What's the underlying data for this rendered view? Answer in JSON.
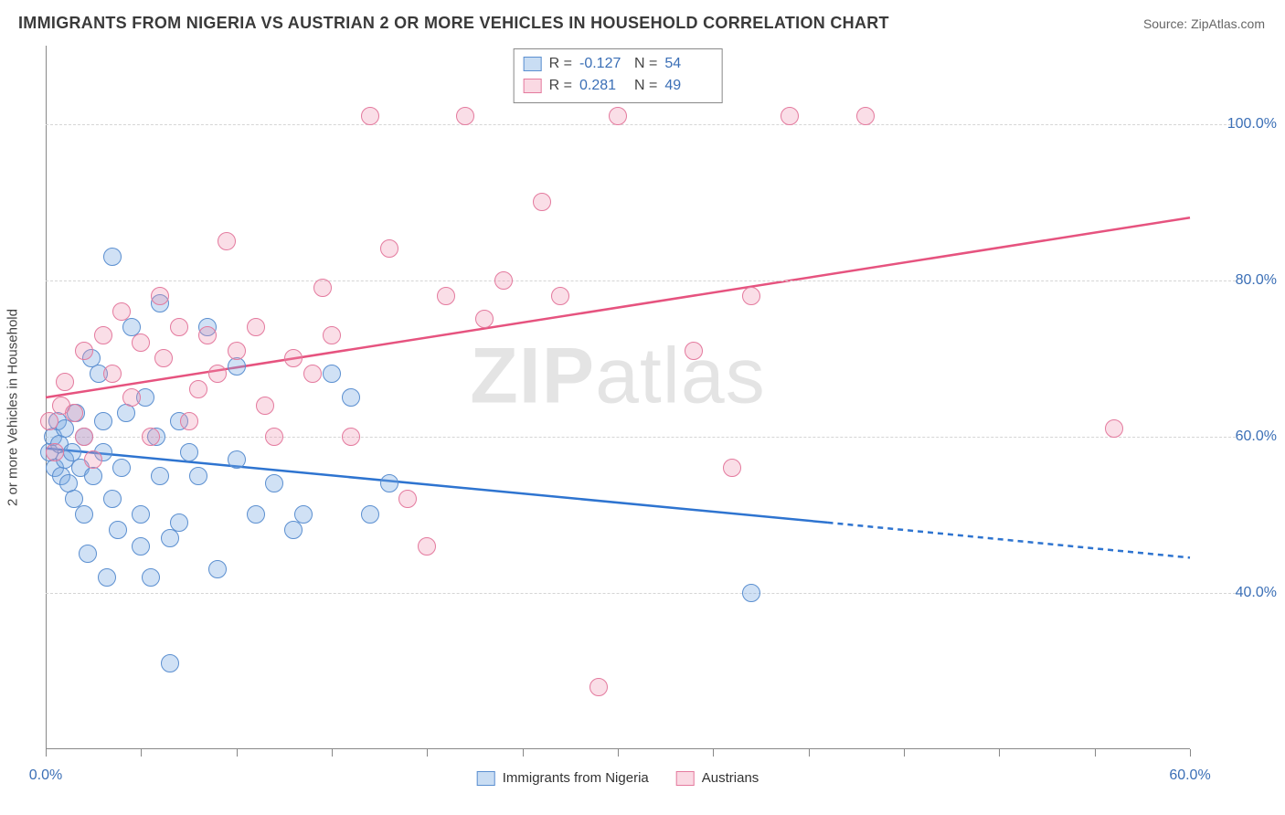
{
  "title": "IMMIGRANTS FROM NIGERIA VS AUSTRIAN 2 OR MORE VEHICLES IN HOUSEHOLD CORRELATION CHART",
  "source": "Source: ZipAtlas.com",
  "watermark_bold": "ZIP",
  "watermark_rest": "atlas",
  "chart": {
    "type": "scatter",
    "x_domain": [
      0,
      60
    ],
    "y_domain": [
      20,
      110
    ],
    "background_color": "#ffffff",
    "grid_color": "#d5d5d5",
    "axis_color": "#888888",
    "ylabel": "2 or more Vehicles in Household",
    "label_fontsize": 15,
    "tick_fontsize": 16,
    "tick_color": "#3b6fb6",
    "x_ticks": [
      0,
      5,
      10,
      15,
      20,
      25,
      30,
      35,
      40,
      45,
      50,
      55,
      60
    ],
    "x_tick_labels": {
      "0": "0.0%",
      "60": "60.0%"
    },
    "y_gridlines": [
      40,
      60,
      80,
      100
    ],
    "y_tick_labels": {
      "40": "40.0%",
      "60": "60.0%",
      "80": "80.0%",
      "100": "100.0%"
    },
    "marker_radius": 10,
    "marker_border_width": 1.5,
    "series": [
      {
        "id": "a",
        "name": "Immigrants from Nigeria",
        "fill": "rgba(120,170,225,0.35)",
        "border": "#5b8fd0",
        "trend": {
          "color": "#2e74d0",
          "width": 2.5,
          "x1": 0,
          "y1": 58.5,
          "x_solid_end": 41,
          "y_solid_end": 49,
          "x2": 60,
          "y2": 44.5,
          "dash": "6,5"
        },
        "points": [
          [
            0.2,
            58
          ],
          [
            0.4,
            60
          ],
          [
            0.5,
            56
          ],
          [
            0.6,
            62
          ],
          [
            0.7,
            59
          ],
          [
            0.8,
            55
          ],
          [
            1.0,
            57
          ],
          [
            1.0,
            61
          ],
          [
            1.2,
            54
          ],
          [
            1.4,
            58
          ],
          [
            1.5,
            52
          ],
          [
            1.6,
            63
          ],
          [
            1.8,
            56
          ],
          [
            2.0,
            50
          ],
          [
            2.0,
            60
          ],
          [
            2.2,
            45
          ],
          [
            2.4,
            70
          ],
          [
            2.5,
            55
          ],
          [
            2.8,
            68
          ],
          [
            3.0,
            58
          ],
          [
            3.0,
            62
          ],
          [
            3.2,
            42
          ],
          [
            3.5,
            83
          ],
          [
            3.5,
            52
          ],
          [
            3.8,
            48
          ],
          [
            4.0,
            56
          ],
          [
            4.2,
            63
          ],
          [
            4.5,
            74
          ],
          [
            5.0,
            50
          ],
          [
            5.0,
            46
          ],
          [
            5.2,
            65
          ],
          [
            5.5,
            42
          ],
          [
            5.8,
            60
          ],
          [
            6.0,
            77
          ],
          [
            6.0,
            55
          ],
          [
            6.5,
            47
          ],
          [
            6.5,
            31
          ],
          [
            7.0,
            62
          ],
          [
            7.0,
            49
          ],
          [
            7.5,
            58
          ],
          [
            8.0,
            55
          ],
          [
            8.5,
            74
          ],
          [
            9.0,
            43
          ],
          [
            10.0,
            57
          ],
          [
            10.0,
            69
          ],
          [
            11.0,
            50
          ],
          [
            12.0,
            54
          ],
          [
            13.0,
            48
          ],
          [
            13.5,
            50
          ],
          [
            15.0,
            68
          ],
          [
            16.0,
            65
          ],
          [
            17.0,
            50
          ],
          [
            18.0,
            54
          ],
          [
            37.0,
            40
          ]
        ]
      },
      {
        "id": "b",
        "name": "Austrians",
        "fill": "rgba(240,145,175,0.30)",
        "border": "#e47a9e",
        "trend": {
          "color": "#e6537f",
          "width": 2.5,
          "x1": 0,
          "y1": 65,
          "x2": 60,
          "y2": 88
        },
        "points": [
          [
            0.2,
            62
          ],
          [
            0.5,
            58
          ],
          [
            0.8,
            64
          ],
          [
            1.0,
            67
          ],
          [
            1.5,
            63
          ],
          [
            2.0,
            71
          ],
          [
            2.0,
            60
          ],
          [
            2.5,
            57
          ],
          [
            3.0,
            73
          ],
          [
            3.5,
            68
          ],
          [
            4.0,
            76
          ],
          [
            4.5,
            65
          ],
          [
            5.0,
            72
          ],
          [
            5.5,
            60
          ],
          [
            6.0,
            78
          ],
          [
            6.2,
            70
          ],
          [
            7.0,
            74
          ],
          [
            7.5,
            62
          ],
          [
            8.0,
            66
          ],
          [
            8.5,
            73
          ],
          [
            9.0,
            68
          ],
          [
            9.5,
            85
          ],
          [
            10.0,
            71
          ],
          [
            11.0,
            74
          ],
          [
            11.5,
            64
          ],
          [
            12.0,
            60
          ],
          [
            13.0,
            70
          ],
          [
            14.0,
            68
          ],
          [
            14.5,
            79
          ],
          [
            15.0,
            73
          ],
          [
            16.0,
            60
          ],
          [
            17.0,
            101
          ],
          [
            18.0,
            84
          ],
          [
            19.0,
            52
          ],
          [
            20.0,
            46
          ],
          [
            21.0,
            78
          ],
          [
            22.0,
            101
          ],
          [
            23.0,
            75
          ],
          [
            24.0,
            80
          ],
          [
            26.0,
            90
          ],
          [
            27.0,
            78
          ],
          [
            29.0,
            28
          ],
          [
            30.0,
            101
          ],
          [
            34.0,
            71
          ],
          [
            36.0,
            56
          ],
          [
            37.0,
            78
          ],
          [
            39.0,
            101
          ],
          [
            43.0,
            101
          ],
          [
            56.0,
            61
          ]
        ]
      }
    ]
  },
  "legend_top": {
    "rows": [
      {
        "swatch": "a",
        "r_label": "R =",
        "r_value": "-0.127",
        "n_label": "N =",
        "n_value": "54"
      },
      {
        "swatch": "b",
        "r_label": "R =",
        "r_value": "0.281",
        "n_label": "N =",
        "n_value": "49"
      }
    ]
  },
  "legend_bottom": [
    {
      "swatch": "a",
      "label": "Immigrants from Nigeria"
    },
    {
      "swatch": "b",
      "label": "Austrians"
    }
  ]
}
